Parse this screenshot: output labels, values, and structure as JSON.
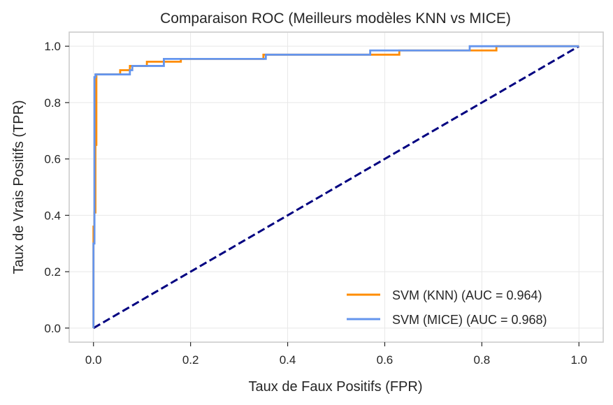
{
  "chart_data": {
    "type": "line",
    "title": "Comparaison ROC (Meilleurs modèles KNN vs MICE)",
    "xlabel": "Taux de Faux Positifs (FPR)",
    "ylabel": "Taux de Vrais Positifs (TPR)",
    "xlim": [
      -0.05,
      1.05
    ],
    "ylim": [
      -0.05,
      1.05
    ],
    "xticks": [
      "0.0",
      "0.2",
      "0.4",
      "0.6",
      "0.8",
      "1.0"
    ],
    "yticks": [
      "0.0",
      "0.2",
      "0.4",
      "0.6",
      "0.8",
      "1.0"
    ],
    "grid": true,
    "legend_position": "lower-right",
    "series": [
      {
        "name": "SVM (KNN) (AUC = 0.964)",
        "color": "#ff8c00",
        "style": "solid",
        "x": [
          0.0,
          0.0,
          0.0,
          0.0,
          0.002,
          0.002,
          0.004,
          0.004,
          0.006,
          0.006,
          0.055,
          0.055,
          0.075,
          0.075,
          0.11,
          0.11,
          0.18,
          0.18,
          0.35,
          0.35,
          0.63,
          0.63,
          0.83,
          0.83,
          1.0
        ],
        "y": [
          0.0,
          0.3,
          0.3,
          0.36,
          0.36,
          0.41,
          0.41,
          0.65,
          0.65,
          0.9,
          0.9,
          0.915,
          0.915,
          0.93,
          0.93,
          0.945,
          0.945,
          0.955,
          0.955,
          0.97,
          0.97,
          0.985,
          0.985,
          1.0,
          1.0
        ]
      },
      {
        "name": "SVM (MICE) (AUC = 0.968)",
        "color": "#6495ed",
        "style": "solid",
        "x": [
          0.0,
          0.0,
          0.002,
          0.002,
          0.004,
          0.004,
          0.075,
          0.075,
          0.08,
          0.08,
          0.145,
          0.145,
          0.355,
          0.355,
          0.57,
          0.57,
          0.775,
          0.775,
          1.0
        ],
        "y": [
          0.0,
          0.3,
          0.3,
          0.89,
          0.89,
          0.9,
          0.9,
          0.915,
          0.915,
          0.93,
          0.93,
          0.955,
          0.955,
          0.97,
          0.97,
          0.985,
          0.985,
          1.0,
          1.0
        ]
      },
      {
        "name": "",
        "color": "#000080",
        "style": "dashed",
        "x": [
          0.0,
          1.0
        ],
        "y": [
          0.0,
          1.0
        ]
      }
    ]
  }
}
